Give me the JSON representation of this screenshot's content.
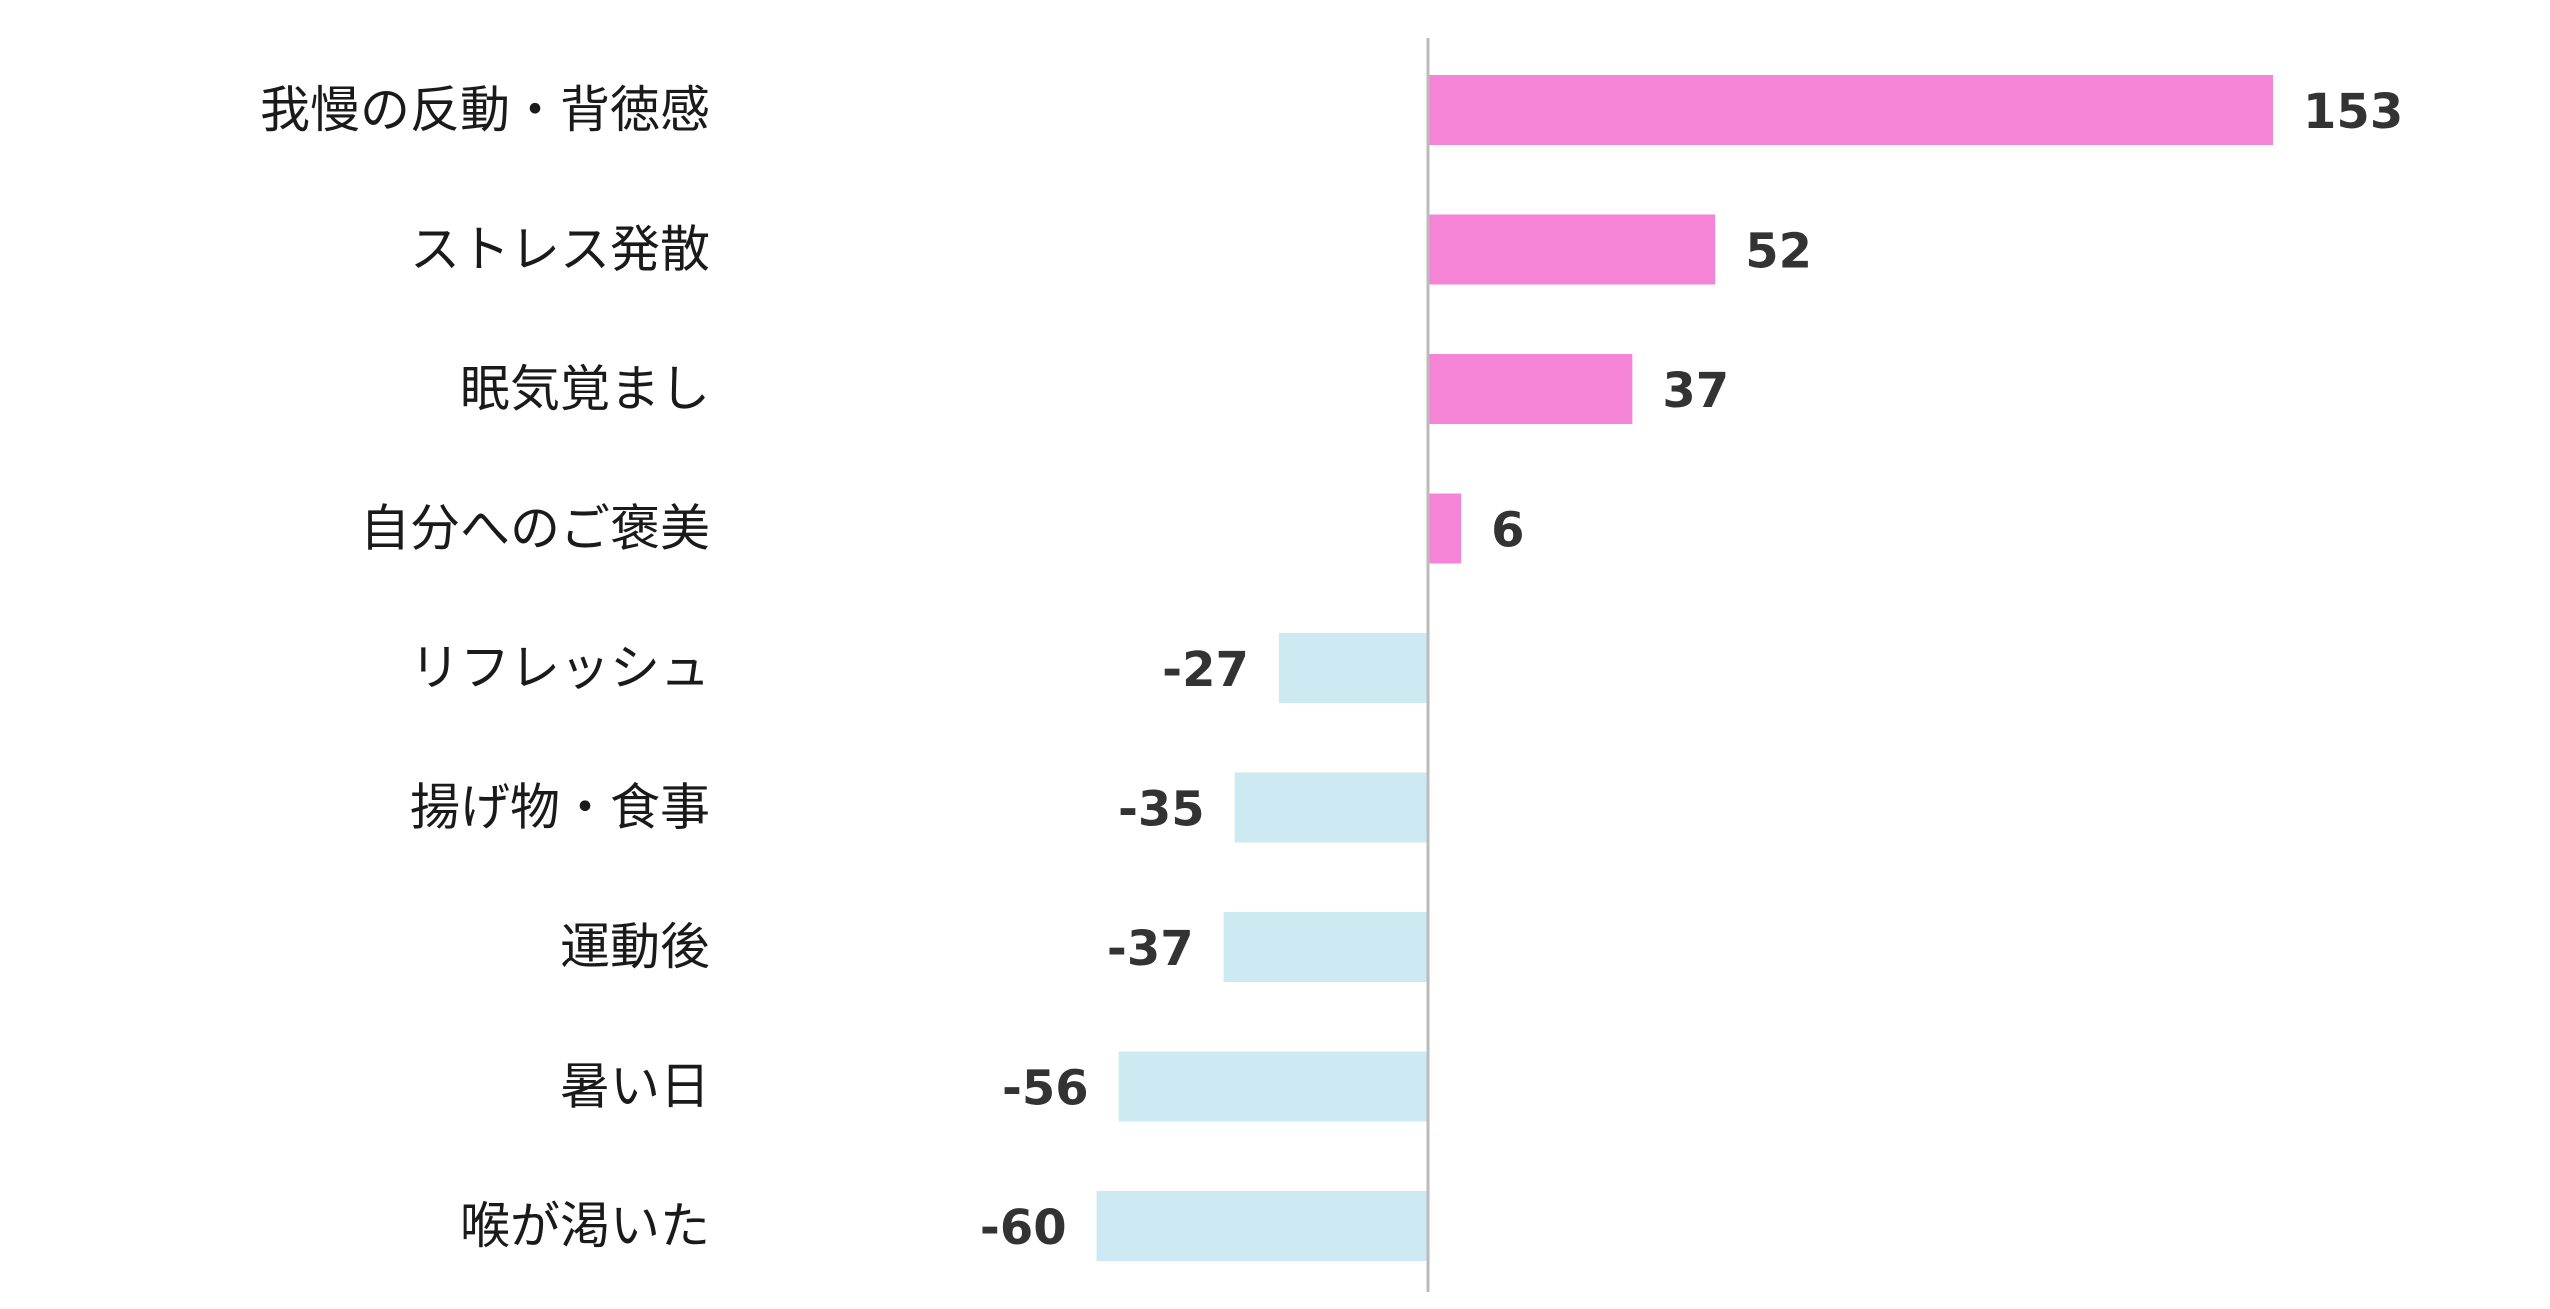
{
  "chart_data": {
    "type": "bar",
    "orientation": "horizontal",
    "categories": [
      "我慢の反動・背徳感",
      "ストレス発散",
      "眠気覚まし",
      "自分へのご褒美",
      "リフレッシュ",
      "揚げ物・食事",
      "運動後",
      "暑い日",
      "喉が渇いた"
    ],
    "values": [
      153,
      52,
      37,
      6,
      -27,
      -35,
      -37,
      -56,
      -60
    ],
    "value_labels": [
      "153",
      "52",
      "37",
      "6",
      "-27",
      "-35",
      "-37",
      "-56",
      "-60"
    ],
    "title": "",
    "xlabel": "",
    "ylabel": "",
    "xlim": [
      -60,
      153
    ],
    "grid": false,
    "legend": "none",
    "colors": {
      "positive": "#f584d6",
      "negative": "#cde9f2",
      "axis": "#bbbbbb",
      "category_text": "#1a1a1a",
      "value_text": "#333333"
    }
  }
}
